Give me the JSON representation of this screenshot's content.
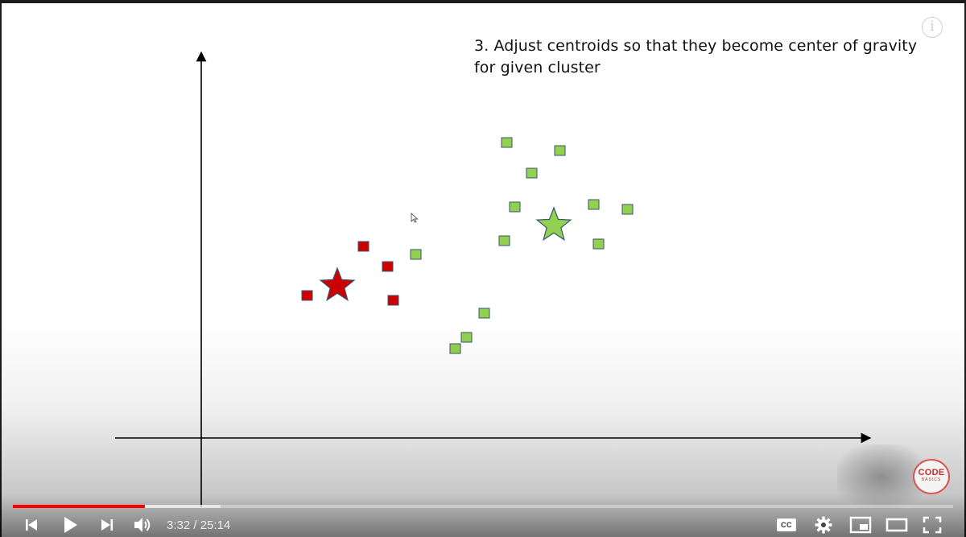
{
  "slide": {
    "title_line1": "3. Adjust centroids so that they become center of gravity",
    "title_line2": "for given cluster"
  },
  "colors": {
    "red_cluster": "#cc0000",
    "green_cluster": "#92d050",
    "marker_stroke": "#3a5570",
    "progress_played": "#ff0000"
  },
  "player": {
    "current_time": "3:32",
    "separator": " / ",
    "duration": "25:14",
    "progress_fraction": 0.14,
    "buffered_fraction": 0.221,
    "info_label": "i",
    "watermark_line1": "CODE",
    "watermark_line2": "BASICS",
    "controls": [
      "previous-icon",
      "play-icon",
      "next-icon",
      "volume-icon",
      "cc-icon",
      "settings-icon",
      "miniplayer-icon",
      "theater-icon",
      "fullscreen-icon"
    ],
    "cc_label": "CC"
  }
}
